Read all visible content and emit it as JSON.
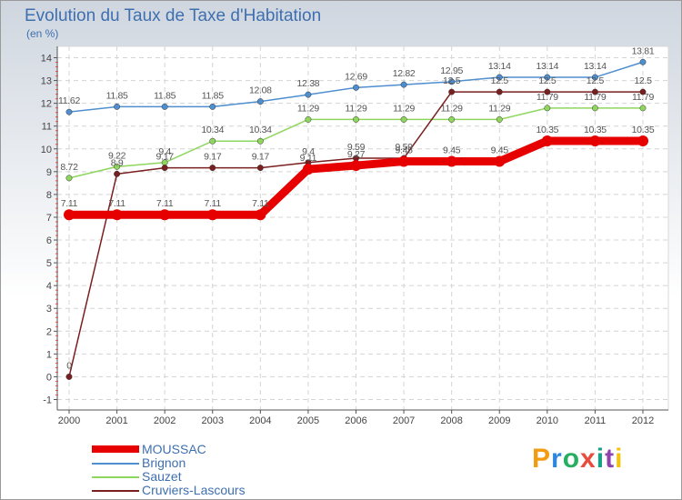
{
  "chart_data": {
    "type": "line",
    "title": "Evolution du Taux de Taxe d'Habitation",
    "ylabel": "(en %)",
    "xlabel": "",
    "x": [
      "2000",
      "2001",
      "2002",
      "2003",
      "2004",
      "2005",
      "2006",
      "2007",
      "2008",
      "2009",
      "2010",
      "2011",
      "2012"
    ],
    "yticks": [
      "-1",
      "0",
      "1",
      "2",
      "3",
      "4",
      "5",
      "6",
      "7",
      "8",
      "9",
      "10",
      "11",
      "12",
      "13",
      "14"
    ],
    "ylim": [
      -1,
      14
    ],
    "legend_position": "bottom-left",
    "series": [
      {
        "name": "MOUSSAC",
        "color": "#e60000",
        "values": [
          7.11,
          7.11,
          7.11,
          7.11,
          7.11,
          9.11,
          9.27,
          9.45,
          9.45,
          9.45,
          10.35,
          10.35,
          10.35
        ],
        "labels": [
          "7.11",
          "7.11",
          "7.11",
          "7.11",
          "7.11",
          "9.11",
          "9.27",
          "9.45",
          "9.45",
          "9.45",
          "10.35",
          "10.35",
          "10.35"
        ]
      },
      {
        "name": "Brignon",
        "color": "#4f8fcf",
        "values": [
          11.62,
          11.85,
          11.85,
          11.85,
          12.08,
          12.38,
          12.69,
          12.82,
          12.95,
          13.14,
          13.14,
          13.14,
          13.81
        ],
        "labels": [
          "11.62",
          "11.85",
          "11.85",
          "11.85",
          "12.08",
          "12.38",
          "12.69",
          "12.82",
          "12.95",
          "13.14",
          "13.14",
          "13.14",
          "13.81"
        ]
      },
      {
        "name": "Sauzet",
        "color": "#8fd65e",
        "values": [
          8.72,
          9.22,
          9.4,
          10.34,
          10.34,
          11.29,
          11.29,
          11.29,
          11.29,
          11.29,
          11.79,
          11.79,
          11.79
        ],
        "labels": [
          "8.72",
          "9.22",
          "9.4",
          "10.34",
          "10.34",
          "11.29",
          "11.29",
          "11.29",
          "11.29",
          "11.29",
          "11.79",
          "11.79",
          "11.79"
        ]
      },
      {
        "name": "Cruviers-Lascours",
        "color": "#7a1f1f",
        "values": [
          0,
          8.9,
          9.17,
          9.17,
          9.17,
          9.4,
          9.59,
          9.59,
          12.5,
          12.5,
          12.5,
          12.5,
          12.5
        ],
        "labels": [
          "0",
          "8.9",
          "9.17",
          "9.17",
          "9.17",
          "9.4",
          "9.59",
          "9.59",
          "12.5",
          "12.5",
          "12.5",
          "12.5",
          "12.5"
        ]
      }
    ]
  },
  "legend": {
    "items": [
      "MOUSSAC",
      "Brignon",
      "Sauzet",
      "Cruviers-Lascours"
    ]
  },
  "logo": {
    "letters": [
      "P",
      "r",
      "o",
      "x",
      "i",
      "t",
      "i"
    ],
    "colors": [
      "#f39c12",
      "#2e86de",
      "#27ae60",
      "#e74c3c",
      "#16a085",
      "#8e44ad",
      "#f1c40f"
    ]
  }
}
